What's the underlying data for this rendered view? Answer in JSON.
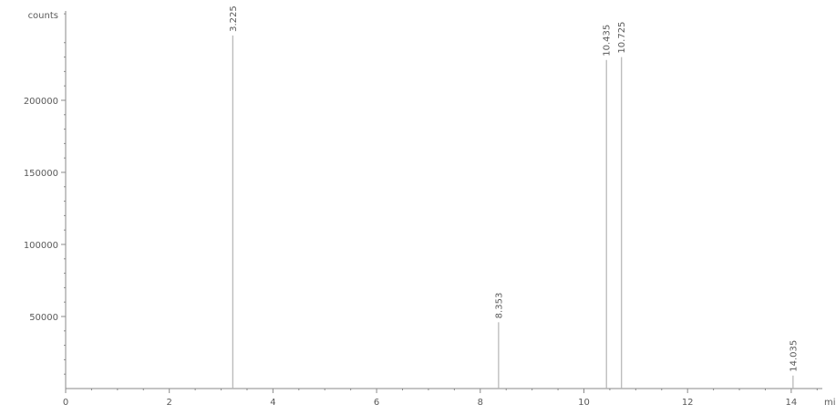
{
  "chart_data": {
    "type": "line",
    "title": "",
    "ylabel": "counts",
    "xlabel": "mi",
    "xlim": [
      0,
      14.6
    ],
    "ylim": [
      0,
      262000
    ],
    "x_ticks": [
      0,
      2,
      4,
      6,
      8,
      10,
      12,
      14
    ],
    "x_tick_labels": [
      "0",
      "2",
      "4",
      "6",
      "8",
      "10",
      "12",
      "14"
    ],
    "y_ticks": [
      50000,
      100000,
      150000,
      200000
    ],
    "y_tick_labels": [
      "50000",
      "100000",
      "150000",
      "200000"
    ],
    "grid": false,
    "series": [
      {
        "peaks": [
          {
            "x": 3.225,
            "y": 245000,
            "label": "3.225"
          },
          {
            "x": 8.353,
            "y": 46000,
            "label": "8.353"
          },
          {
            "x": 10.435,
            "y": 228000,
            "label": "10.435"
          },
          {
            "x": 10.725,
            "y": 230000,
            "label": "10.725"
          },
          {
            "x": 14.035,
            "y": 9000,
            "label": "14.035"
          }
        ]
      }
    ]
  }
}
